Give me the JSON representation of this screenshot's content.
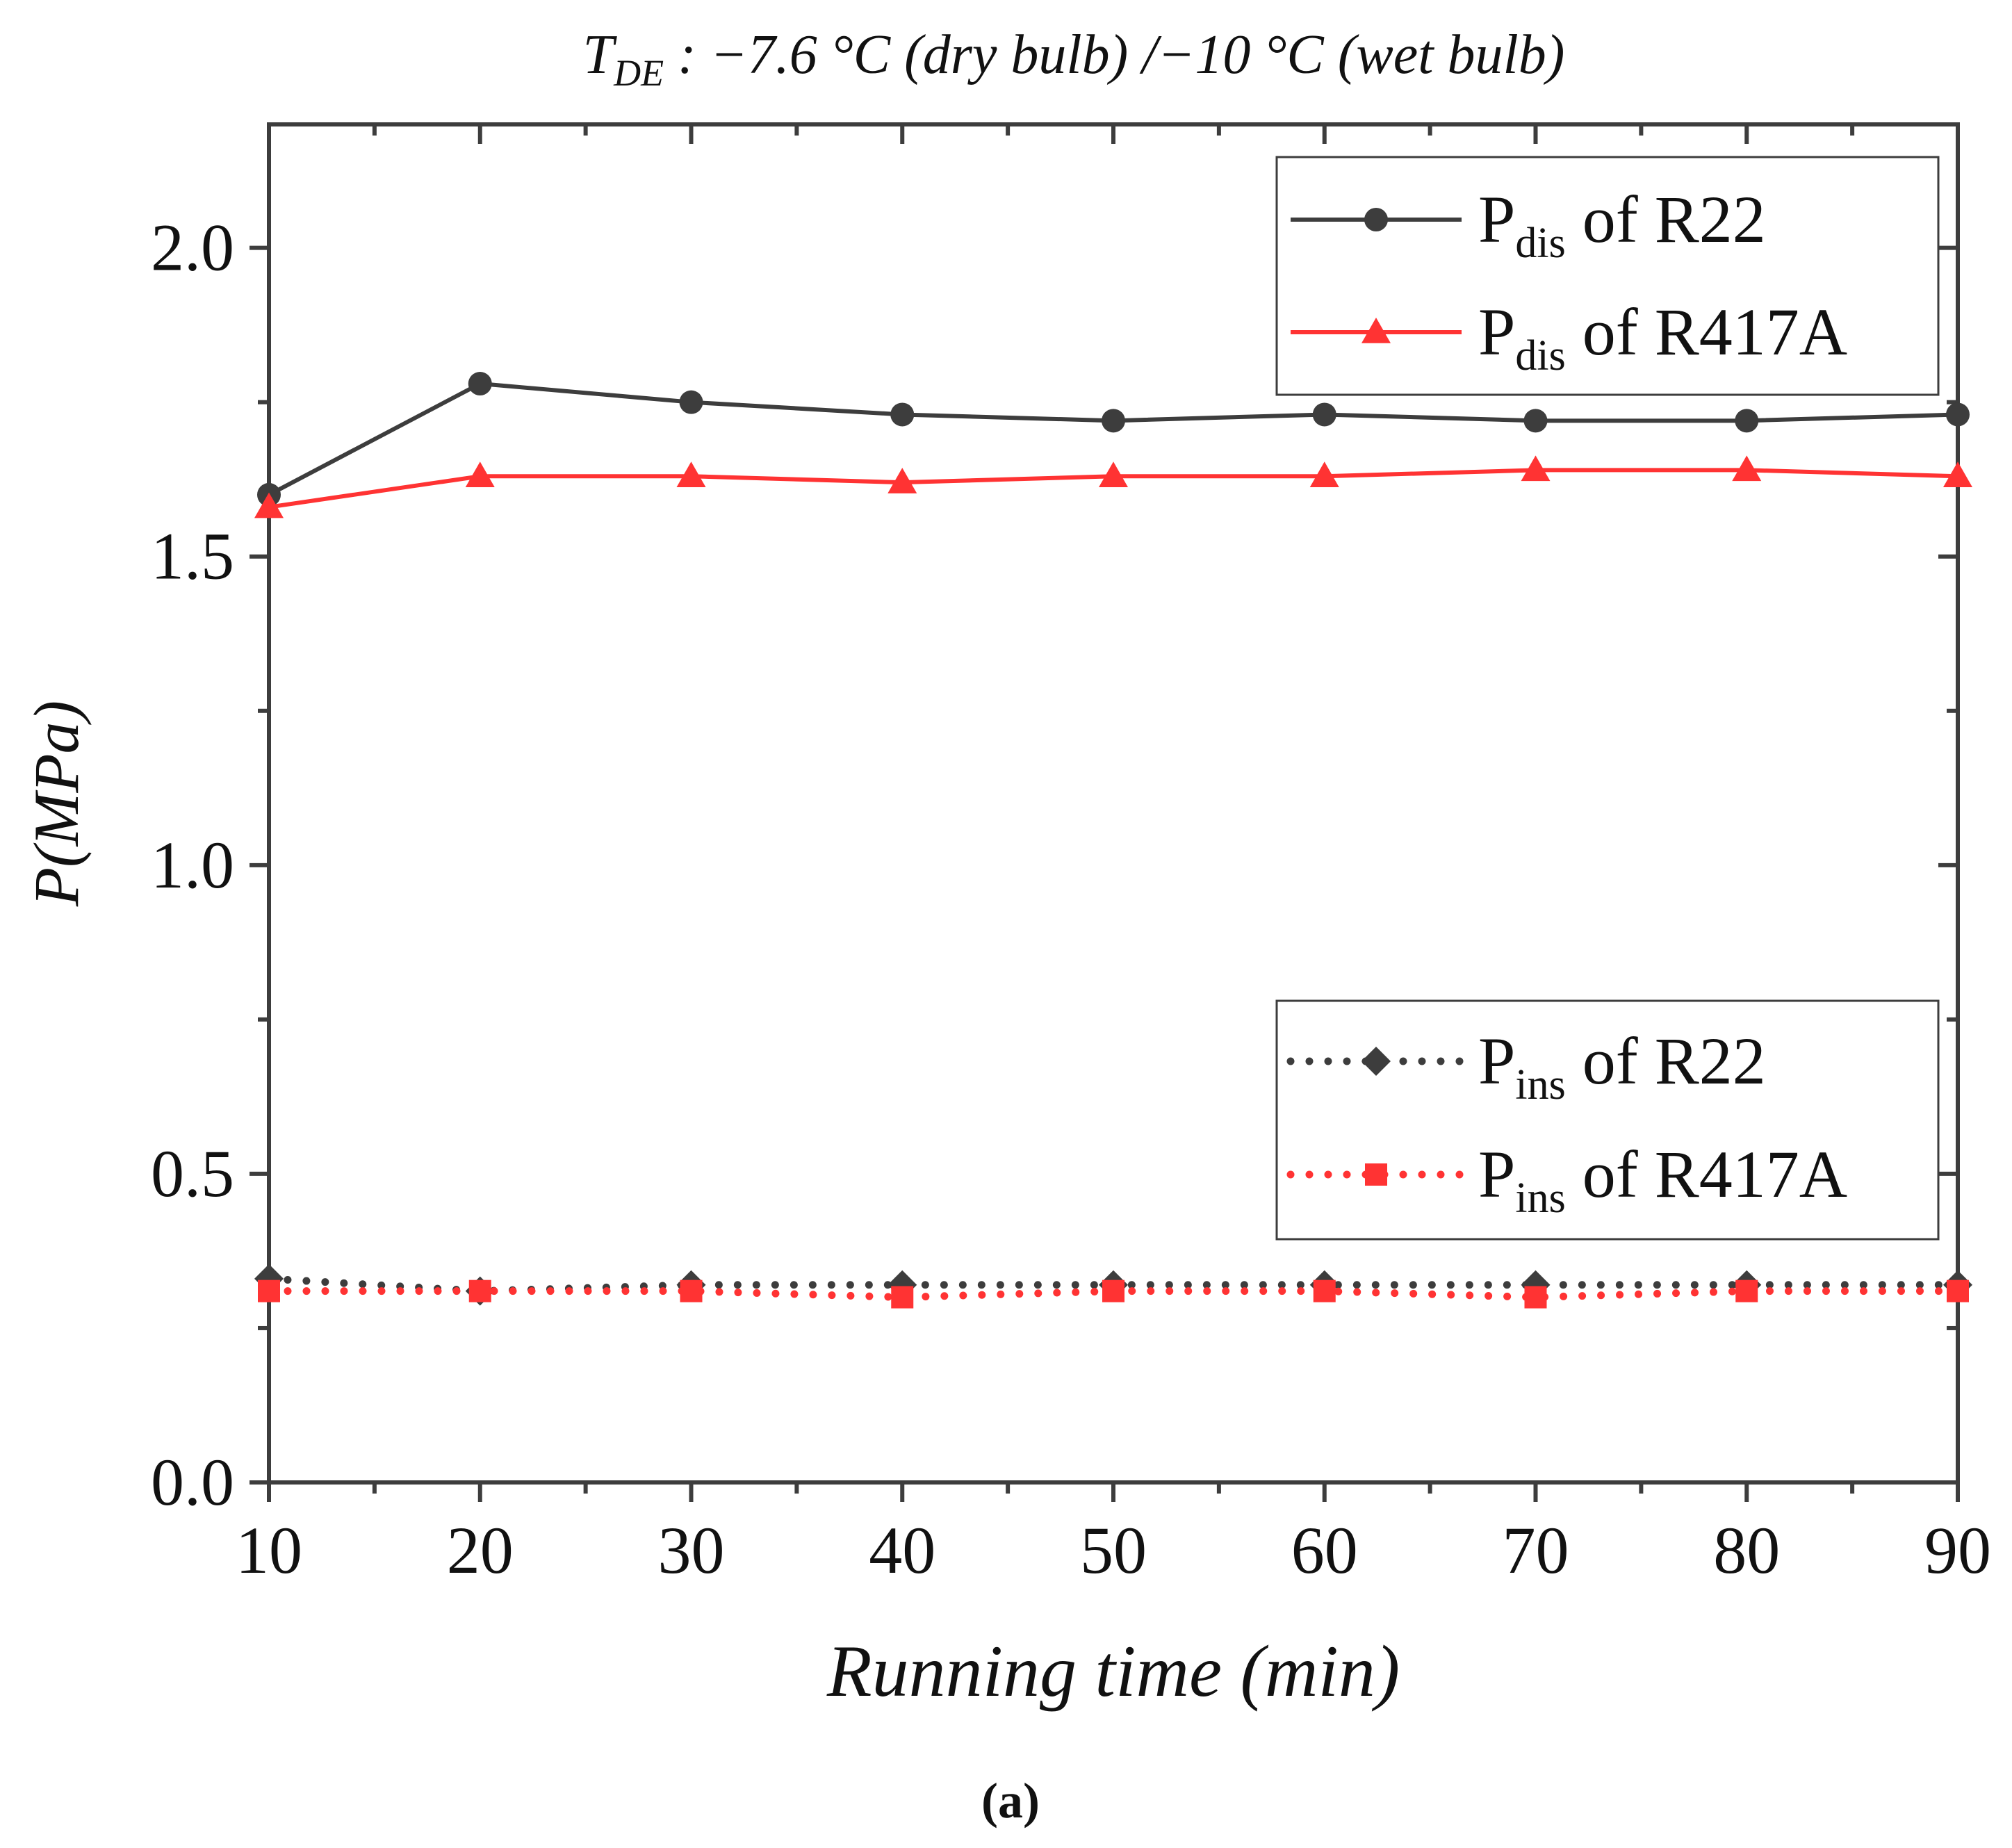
{
  "chart_data": {
    "type": "line",
    "title": {
      "symbol": "T",
      "subscript": "DE",
      "text": " : −7.6 °C (dry bulb) /−10 °C (wet bulb)"
    },
    "xlabel": "Running time (min)",
    "ylabel": "P(MPa)",
    "panel_label": "(a)",
    "xlim": [
      10,
      90
    ],
    "ylim": [
      0.0,
      2.2
    ],
    "x": [
      10,
      20,
      30,
      40,
      50,
      60,
      70,
      80,
      90
    ],
    "x_ticks": [
      10,
      20,
      30,
      40,
      50,
      60,
      70,
      80,
      90
    ],
    "x_tick_labels": [
      "10",
      "20",
      "30",
      "40",
      "50",
      "60",
      "70",
      "80",
      "90"
    ],
    "y_ticks": [
      0.0,
      0.5,
      1.0,
      1.5,
      2.0
    ],
    "y_tick_labels": [
      "0.0",
      "0.5",
      "1.0",
      "1.5",
      "2.0"
    ],
    "grid": false,
    "series": [
      {
        "name": "Pdis of R22",
        "label_main": "P",
        "label_sub": "dis",
        "label_rest": " of R22",
        "color": "#3d3d3d",
        "marker": "circle",
        "line": "solid",
        "legend": "top-right",
        "values": [
          1.6,
          1.78,
          1.75,
          1.73,
          1.72,
          1.73,
          1.72,
          1.72,
          1.73
        ]
      },
      {
        "name": "Pdis of R417A",
        "label_main": "P",
        "label_sub": "dis",
        "label_rest": " of R417A",
        "color": "#ff3333",
        "marker": "triangle",
        "line": "solid",
        "legend": "top-right",
        "values": [
          1.58,
          1.63,
          1.63,
          1.62,
          1.63,
          1.63,
          1.64,
          1.64,
          1.63
        ]
      },
      {
        "name": "Pins of R22",
        "label_main": "P",
        "label_sub": "ins",
        "label_rest": " of R22",
        "color": "#3d3d3d",
        "marker": "diamond",
        "line": "dotted",
        "legend": "bottom-right",
        "values": [
          0.33,
          0.31,
          0.32,
          0.32,
          0.32,
          0.32,
          0.32,
          0.32,
          0.32
        ]
      },
      {
        "name": "Pins of R417A",
        "label_main": "P",
        "label_sub": "ins",
        "label_rest": " of R417A",
        "color": "#ff3333",
        "marker": "square",
        "line": "dotted",
        "legend": "bottom-right",
        "values": [
          0.31,
          0.31,
          0.31,
          0.3,
          0.31,
          0.31,
          0.3,
          0.31,
          0.31
        ]
      }
    ]
  }
}
